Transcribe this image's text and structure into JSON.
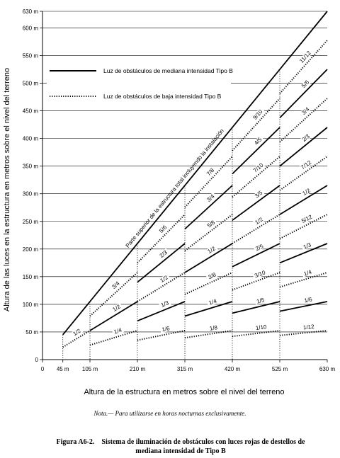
{
  "chart_data": {
    "type": "line",
    "x_ticks": [
      "0",
      "45 m",
      "105 m",
      "210 m",
      "315 m",
      "420 m",
      "525 m",
      "630 m"
    ],
    "x_tick_values": [
      0,
      45,
      105,
      210,
      315,
      420,
      525,
      630
    ],
    "y_ticks": [
      "0",
      "50 m",
      "100 m",
      "150 m",
      "200 m",
      "250 m",
      "300 m",
      "350 m",
      "400 m",
      "450 m",
      "500 m",
      "550 m",
      "600 m",
      "630 m"
    ],
    "y_tick_values": [
      0,
      50,
      100,
      150,
      200,
      250,
      300,
      350,
      400,
      450,
      500,
      550,
      600,
      630
    ],
    "xlim": [
      0,
      630
    ],
    "ylim": [
      0,
      630
    ],
    "xlabel": "Altura de la estructura en metros sobre el nivel del terreno",
    "ylabel": "Altura de las luces en la estructura en metros sobre el nivel del terreno",
    "top_line": {
      "label": "Parte superior de la estructura total incluyendo la instalación",
      "x": [
        45,
        630
      ],
      "y": [
        45,
        630
      ]
    },
    "legend": [
      {
        "style": "solid",
        "label": "Luz de obstáculos de mediana intensidad Tipo B"
      },
      {
        "style": "dotted",
        "label": "Luz de obstáculos de baja intensidad Tipo B"
      }
    ],
    "series": [
      {
        "fraction": "1/2",
        "style": "dotted",
        "x_range": [
          45,
          105
        ]
      },
      {
        "fraction": "1/2",
        "style": "solid",
        "x_range": [
          105,
          210
        ]
      },
      {
        "fraction": "1/4",
        "style": "dotted",
        "x_range": [
          105,
          210
        ]
      },
      {
        "fraction": "3/4",
        "style": "dotted",
        "x_range": [
          105,
          210
        ]
      },
      {
        "fraction": "1/3",
        "style": "solid",
        "x_range": [
          210,
          315
        ]
      },
      {
        "fraction": "2/3",
        "style": "solid",
        "x_range": [
          210,
          315
        ]
      },
      {
        "fraction": "1/6",
        "style": "dotted",
        "x_range": [
          210,
          315
        ]
      },
      {
        "fraction": "1/2",
        "style": "dotted",
        "x_range": [
          210,
          315
        ]
      },
      {
        "fraction": "5/6",
        "style": "dotted",
        "x_range": [
          210,
          315
        ]
      },
      {
        "fraction": "1/4",
        "style": "solid",
        "x_range": [
          315,
          420
        ]
      },
      {
        "fraction": "1/2",
        "style": "solid",
        "x_range": [
          315,
          420
        ]
      },
      {
        "fraction": "3/4",
        "style": "solid",
        "x_range": [
          315,
          420
        ]
      },
      {
        "fraction": "1/8",
        "style": "dotted",
        "x_range": [
          315,
          420
        ]
      },
      {
        "fraction": "3/8",
        "style": "dotted",
        "x_range": [
          315,
          420
        ]
      },
      {
        "fraction": "5/8",
        "style": "dotted",
        "x_range": [
          315,
          420
        ]
      },
      {
        "fraction": "7/8",
        "style": "dotted",
        "x_range": [
          315,
          420
        ]
      },
      {
        "fraction": "1/5",
        "style": "solid",
        "x_range": [
          420,
          525
        ]
      },
      {
        "fraction": "2/5",
        "style": "solid",
        "x_range": [
          420,
          525
        ]
      },
      {
        "fraction": "3/5",
        "style": "solid",
        "x_range": [
          420,
          525
        ]
      },
      {
        "fraction": "4/5",
        "style": "solid",
        "x_range": [
          420,
          525
        ]
      },
      {
        "fraction": "1/10",
        "style": "dotted",
        "x_range": [
          420,
          525
        ]
      },
      {
        "fraction": "3/10",
        "style": "dotted",
        "x_range": [
          420,
          525
        ]
      },
      {
        "fraction": "1/2",
        "style": "dotted",
        "x_range": [
          420,
          525
        ]
      },
      {
        "fraction": "7/10",
        "style": "dotted",
        "x_range": [
          420,
          525
        ]
      },
      {
        "fraction": "9/10",
        "style": "dotted",
        "x_range": [
          420,
          525
        ]
      },
      {
        "fraction": "1/6",
        "style": "solid",
        "x_range": [
          525,
          630
        ]
      },
      {
        "fraction": "1/3",
        "style": "solid",
        "x_range": [
          525,
          630
        ]
      },
      {
        "fraction": "1/2",
        "style": "solid",
        "x_range": [
          525,
          630
        ]
      },
      {
        "fraction": "2/3",
        "style": "solid",
        "x_range": [
          525,
          630
        ]
      },
      {
        "fraction": "5/6",
        "style": "solid",
        "x_range": [
          525,
          630
        ]
      },
      {
        "fraction": "1/12",
        "style": "dotted",
        "x_range": [
          525,
          630
        ]
      },
      {
        "fraction": "1/4",
        "style": "dotted",
        "x_range": [
          525,
          630
        ]
      },
      {
        "fraction": "5/12",
        "style": "dotted",
        "x_range": [
          525,
          630
        ]
      },
      {
        "fraction": "7/12",
        "style": "dotted",
        "x_range": [
          525,
          630
        ]
      },
      {
        "fraction": "3/4",
        "style": "dotted",
        "x_range": [
          525,
          630
        ]
      },
      {
        "fraction": "11/12",
        "style": "dotted",
        "x_range": [
          525,
          630
        ]
      }
    ]
  },
  "note": "Nota.— Para utilizarse en horas nocturnas exclusivamente.",
  "caption": {
    "number": "Figura A6-2.",
    "text": "Sistema de iluminación de obstáculos con luces rojas de destellos de mediana intensidad de Tipo B"
  }
}
